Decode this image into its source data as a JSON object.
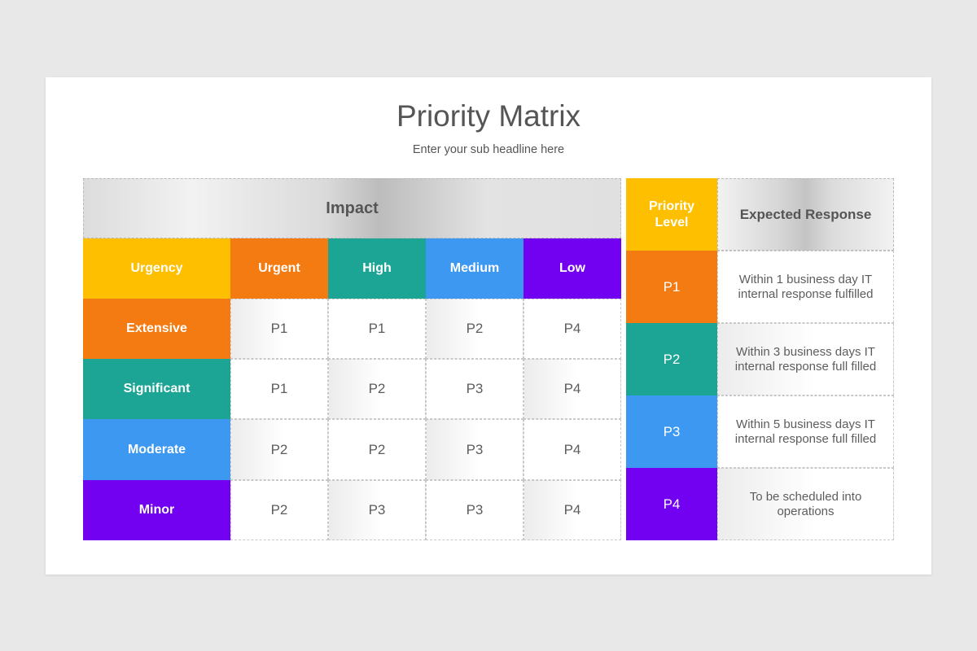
{
  "title": "Priority Matrix",
  "subtitle": "Enter your sub headline here",
  "colors": {
    "yellow": "#fdbf00",
    "orange": "#f37b12",
    "teal": "#1ca594",
    "blue": "#3d98f2",
    "purple": "#7200f1"
  },
  "matrix": {
    "impact_label": "Impact",
    "corner_label": "Urgency",
    "columns": [
      "Urgent",
      "High",
      "Medium",
      "Low"
    ],
    "rows": [
      {
        "label": "Extensive",
        "values": [
          "P1",
          "P1",
          "P2",
          "P4"
        ]
      },
      {
        "label": "Significant",
        "values": [
          "P1",
          "P2",
          "P3",
          "P4"
        ]
      },
      {
        "label": "Moderate",
        "values": [
          "P2",
          "P2",
          "P3",
          "P4"
        ]
      },
      {
        "label": "Minor",
        "values": [
          "P2",
          "P3",
          "P3",
          "P4"
        ]
      }
    ]
  },
  "response": {
    "level_header": "Priority Level",
    "response_header": "Expected Response",
    "levels": [
      {
        "level": "P1",
        "text": "Within 1 business day IT internal response fulfilled"
      },
      {
        "level": "P2",
        "text": "Within 3 business days IT internal response full filled"
      },
      {
        "level": "P3",
        "text": "Within 5 business days IT internal response full filled"
      },
      {
        "level": "P4",
        "text": "To be scheduled into operations"
      }
    ]
  }
}
